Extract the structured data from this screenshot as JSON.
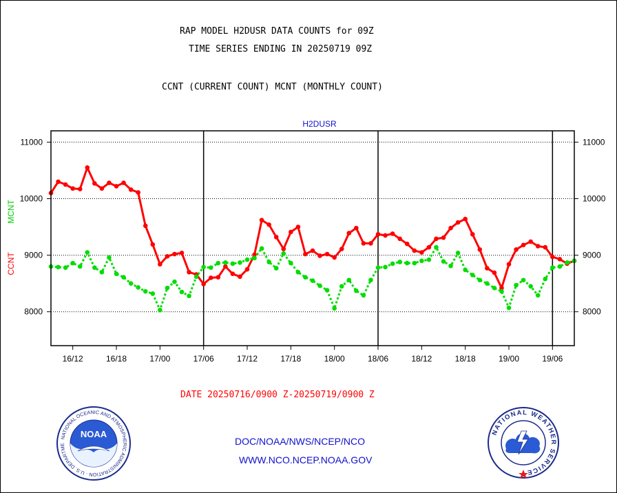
{
  "header": {
    "title_line1": "RAP MODEL H2DUSR DATA COUNTS for 09Z",
    "title_line2": "TIME SERIES ENDING IN 20250719 09Z",
    "subtitle": "CCNT (CURRENT COUNT) MCNT (MONTHLY COUNT)"
  },
  "footer": {
    "date_range": "DATE 20250716/0900 Z-20250719/0900 Z",
    "org_path": "DOC/NOAA/NWS/NCEP/NCO",
    "website": "WWW.NCO.NCEP.NOAA.GOV"
  },
  "logos": {
    "left": {
      "name": "noaa-logo",
      "inner": "NOAA",
      "ring_text": "NATIONAL OCEANIC AND ATMOSPHERIC ADMINISTRATION · U.S. DEPARTMENT OF COMMERCE ·"
    },
    "right": {
      "name": "nws-logo",
      "ring_text": "NATIONAL WEATHER SERVICE"
    }
  },
  "colors": {
    "ccnt": "#ff0000",
    "mcnt": "#00dd00",
    "label_blue": "#1010cc",
    "grid": "#000000"
  },
  "chart_data": {
    "type": "line",
    "title": "H2DUSR",
    "y_left_label_ccnt": "CCNT",
    "y_left_label_mcnt": "MCNT",
    "ylim": [
      7400,
      11200
    ],
    "yticks": [
      8000,
      9000,
      10000,
      11000
    ],
    "grid": true,
    "x_unit": "hours since 20250716/0900 Z",
    "xlim": [
      0,
      72
    ],
    "xticks": [
      {
        "x": 3,
        "label": "16/12"
      },
      {
        "x": 9,
        "label": "16/18"
      },
      {
        "x": 15,
        "label": "17/00"
      },
      {
        "x": 21,
        "label": "17/06"
      },
      {
        "x": 27,
        "label": "17/12"
      },
      {
        "x": 33,
        "label": "17/18"
      },
      {
        "x": 39,
        "label": "18/00"
      },
      {
        "x": 45,
        "label": "18/06"
      },
      {
        "x": 51,
        "label": "18/12"
      },
      {
        "x": 57,
        "label": "18/18"
      },
      {
        "x": 63,
        "label": "19/00"
      },
      {
        "x": 69,
        "label": "19/06"
      }
    ],
    "day_boundaries": [
      21,
      45,
      69
    ],
    "series": [
      {
        "name": "CCNT",
        "style": "solid",
        "values": [
          10100,
          10300,
          10250,
          10180,
          10170,
          10550,
          10270,
          10180,
          10280,
          10220,
          10280,
          10160,
          10110,
          9520,
          9190,
          8840,
          8980,
          9020,
          9040,
          8700,
          8660,
          8490,
          8600,
          8610,
          8800,
          8670,
          8620,
          8750,
          9010,
          9620,
          9540,
          9320,
          9110,
          9410,
          9500,
          9020,
          9080,
          8990,
          9020,
          8960,
          9110,
          9390,
          9480,
          9210,
          9210,
          9370,
          9350,
          9380,
          9290,
          9200,
          9080,
          9050,
          9140,
          9290,
          9310,
          9480,
          9580,
          9640,
          9370,
          9100,
          8770,
          8690,
          8420,
          8840,
          9100,
          9180,
          9240,
          9160,
          9140,
          8970,
          8930,
          8850,
          8900
        ]
      },
      {
        "name": "MCNT",
        "style": "dotted",
        "values": [
          8800,
          8790,
          8780,
          8860,
          8800,
          9050,
          8780,
          8700,
          8960,
          8670,
          8610,
          8500,
          8430,
          8360,
          8320,
          8030,
          8420,
          8530,
          8350,
          8280,
          8620,
          8790,
          8780,
          8860,
          8870,
          8850,
          8870,
          8920,
          8950,
          9120,
          8880,
          8770,
          9030,
          8860,
          8700,
          8610,
          8550,
          8460,
          8380,
          8060,
          8450,
          8560,
          8370,
          8290,
          8560,
          8780,
          8790,
          8850,
          8880,
          8860,
          8860,
          8900,
          8920,
          9140,
          8890,
          8810,
          9040,
          8740,
          8650,
          8560,
          8500,
          8420,
          8360,
          8070,
          8470,
          8560,
          8450,
          8290,
          8580,
          8780,
          8800,
          8870,
          8900
        ]
      }
    ]
  }
}
